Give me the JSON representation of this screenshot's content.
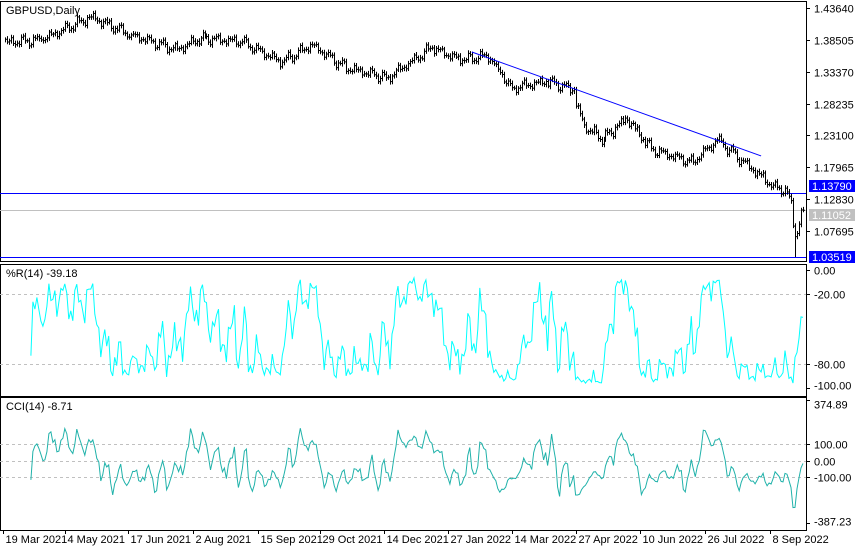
{
  "window": {
    "symbol_title": "GBPUSD,Daily"
  },
  "chart_data": [
    {
      "type": "ohlc-bar",
      "title": "GBPUSD,Daily",
      "ylim": [
        1.03519,
        1.4364
      ],
      "y_ticks": [
        "1.43640",
        "1.38505",
        "1.33370",
        "1.28235",
        "1.23100",
        "1.17965",
        "1.12830",
        "1.07695"
      ],
      "x_ticks": [
        "19 Mar 2021",
        "4 May 2021",
        "17 Jun 2021",
        "2 Aug 2021",
        "15 Sep 2021",
        "29 Oct 2021",
        "14 Dec 2021",
        "27 Jan 2022",
        "14 Mar 2022",
        "27 Apr 2022",
        "10 Jun 2022",
        "26 Jul 2022",
        "8 Sep 2022"
      ],
      "approx_closes": [
        {
          "date": "2021-03-19",
          "close": 1.386
        },
        {
          "date": "2021-03-22",
          "close": 1.3816
        },
        {
          "date": "2021-04-14",
          "close": 1.385
        },
        {
          "date": "2021-05-19",
          "close": 1.422
        },
        {
          "date": "2021-06-16",
          "close": 1.393
        },
        {
          "date": "2021-07-18",
          "close": 1.369
        },
        {
          "date": "2021-08-04",
          "close": 1.388
        },
        {
          "date": "2021-09-02",
          "close": 1.382
        },
        {
          "date": "2021-09-30",
          "close": 1.349
        },
        {
          "date": "2021-10-21",
          "close": 1.377
        },
        {
          "date": "2021-11-14",
          "close": 1.34
        },
        {
          "date": "2021-12-13",
          "close": 1.324
        },
        {
          "date": "2022-01-13",
          "close": 1.372
        },
        {
          "date": "2022-02-03",
          "close": 1.352
        },
        {
          "date": "2022-02-21",
          "close": 1.36
        },
        {
          "date": "2022-03-10",
          "close": 1.308
        },
        {
          "date": "2022-04-04",
          "close": 1.318
        },
        {
          "date": "2022-04-22",
          "close": 1.305
        },
        {
          "date": "2022-04-29",
          "close": 1.248
        },
        {
          "date": "2022-05-13",
          "close": 1.224
        },
        {
          "date": "2022-05-30",
          "close": 1.259
        },
        {
          "date": "2022-06-17",
          "close": 1.208
        },
        {
          "date": "2022-07-15",
          "close": 1.188
        },
        {
          "date": "2022-08-02",
          "close": 1.224
        },
        {
          "date": "2022-08-19",
          "close": 1.19
        },
        {
          "date": "2022-09-09",
          "close": 1.151
        },
        {
          "date": "2022-09-20",
          "close": 1.14
        },
        {
          "date": "2022-09-22",
          "close": 1.126
        },
        {
          "date": "2022-09-23",
          "close": 1.085
        },
        {
          "date": "2022-09-26",
          "close": 1.068,
          "low": 1.03519
        },
        {
          "date": "2022-09-27",
          "close": 1.073
        },
        {
          "date": "2022-09-28",
          "close": 1.088
        },
        {
          "date": "2022-09-29",
          "close": 1.111
        },
        {
          "date": "2022-09-30",
          "close": 1.1105
        }
      ],
      "trendline": {
        "from": {
          "date": "2022-02-10",
          "price": 1.3655
        },
        "to": {
          "date": "2022-09-01",
          "price": 1.198
        },
        "color": "#0000FF"
      },
      "horizontal_lines": [
        {
          "price": 1.1379,
          "label": "1.13790",
          "color": "#0000FF",
          "label_bg": "#0000FF"
        },
        {
          "price": 1.11052,
          "label": "1.11052",
          "color": "#C0C0C0",
          "label_bg": "#C0C0C0"
        },
        {
          "price": 1.03519,
          "label": "1.03519",
          "color": "#0000FF",
          "label_bg": "#0000FF"
        }
      ],
      "bar_color": "#000000"
    },
    {
      "type": "line",
      "title": "%R(14) -39.18",
      "indicator": "Williams %R",
      "period": 14,
      "last_value": -39.18,
      "ylim": [
        -100,
        0
      ],
      "levels": [
        -20,
        -80
      ],
      "y_ticks": [
        "0.00",
        "-20.00",
        "-80.00",
        "-100.00"
      ],
      "color": "#00FFFF"
    },
    {
      "type": "line",
      "title": "CCI(14) -8.71",
      "indicator": "CCI",
      "period": 14,
      "last_value": -8.71,
      "ylim": [
        -387.23,
        374.89
      ],
      "levels": [
        100,
        0,
        -100
      ],
      "y_ticks": [
        "374.89",
        "100.00",
        "0.00",
        "-100.00",
        "-387.23"
      ],
      "color": "#20B2AA"
    }
  ]
}
